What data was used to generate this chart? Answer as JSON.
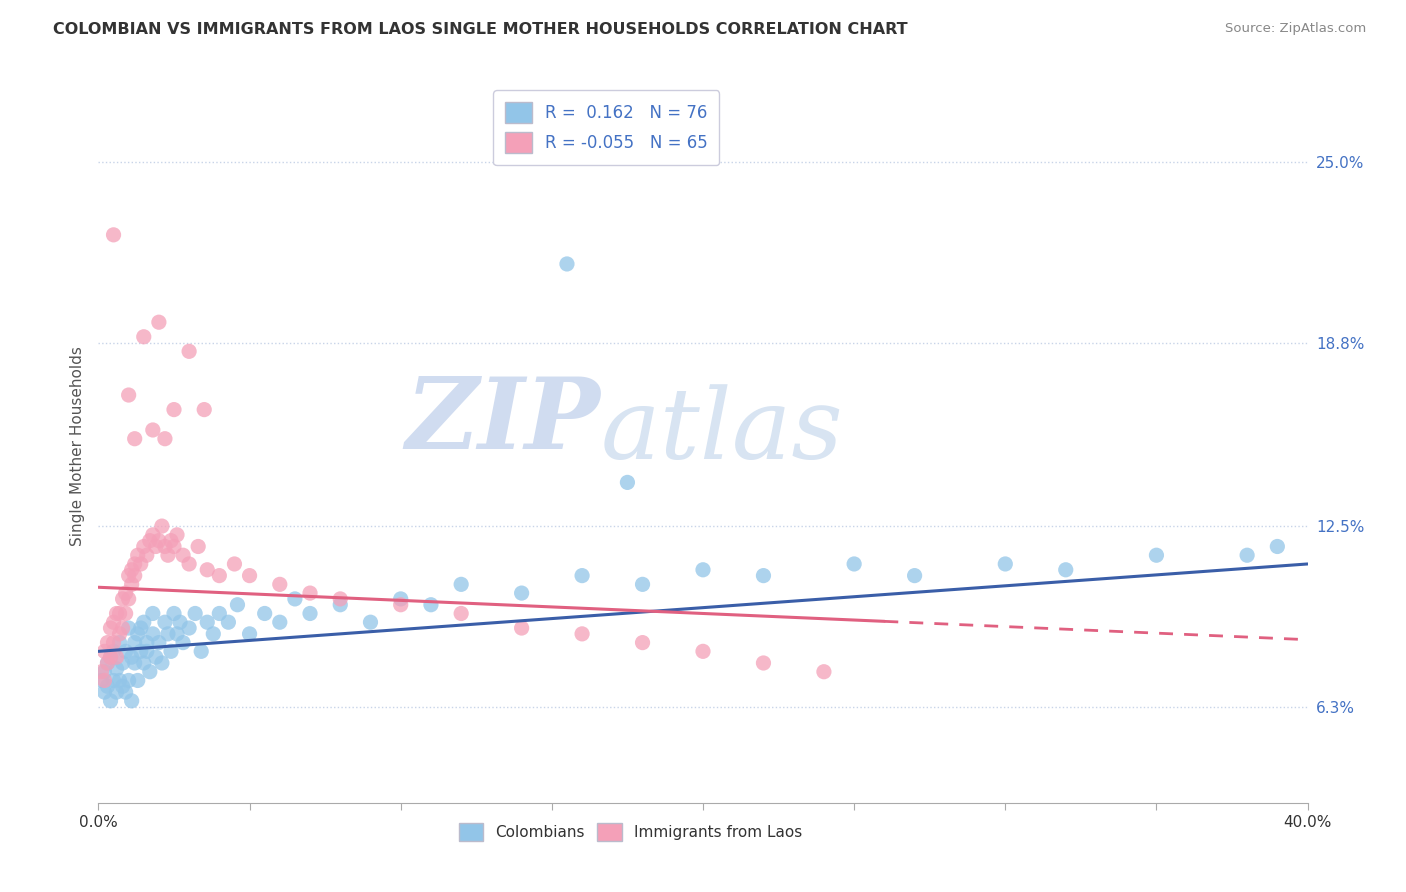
{
  "title": "COLOMBIAN VS IMMIGRANTS FROM LAOS SINGLE MOTHER HOUSEHOLDS CORRELATION CHART",
  "source": "Source: ZipAtlas.com",
  "ylabel": "Single Mother Households",
  "right_yticks": [
    0.063,
    0.125,
    0.188,
    0.25
  ],
  "right_yticklabels": [
    "6.3%",
    "12.5%",
    "18.8%",
    "25.0%"
  ],
  "xlim": [
    0.0,
    0.4
  ],
  "ylim": [
    0.03,
    0.275
  ],
  "legend_R1": "0.162",
  "legend_N1": "76",
  "legend_R2": "-0.055",
  "legend_N2": "65",
  "color_blue": "#92C5E8",
  "color_pink": "#F4A0B8",
  "color_blue_line": "#3A5EA8",
  "color_pink_line": "#E06080",
  "color_text_blue": "#4472C4",
  "color_grid": "#C8D4E8",
  "background_color": "#FFFFFF",
  "watermark_zip": "ZIP",
  "watermark_atlas": "atlas",
  "blue_x": [
    0.001,
    0.002,
    0.002,
    0.003,
    0.003,
    0.004,
    0.004,
    0.005,
    0.005,
    0.006,
    0.006,
    0.007,
    0.007,
    0.008,
    0.008,
    0.009,
    0.009,
    0.01,
    0.01,
    0.011,
    0.011,
    0.012,
    0.012,
    0.013,
    0.013,
    0.014,
    0.014,
    0.015,
    0.015,
    0.016,
    0.016,
    0.017,
    0.018,
    0.018,
    0.019,
    0.02,
    0.021,
    0.022,
    0.023,
    0.024,
    0.025,
    0.026,
    0.027,
    0.028,
    0.03,
    0.032,
    0.034,
    0.036,
    0.038,
    0.04,
    0.043,
    0.046,
    0.05,
    0.055,
    0.06,
    0.065,
    0.07,
    0.08,
    0.09,
    0.1,
    0.11,
    0.12,
    0.14,
    0.16,
    0.18,
    0.2,
    0.22,
    0.25,
    0.27,
    0.3,
    0.32,
    0.35,
    0.155,
    0.175,
    0.38,
    0.39
  ],
  "blue_y": [
    0.072,
    0.068,
    0.075,
    0.07,
    0.078,
    0.065,
    0.08,
    0.072,
    0.082,
    0.068,
    0.076,
    0.072,
    0.085,
    0.07,
    0.078,
    0.082,
    0.068,
    0.09,
    0.072,
    0.08,
    0.065,
    0.085,
    0.078,
    0.088,
    0.072,
    0.082,
    0.09,
    0.078,
    0.092,
    0.082,
    0.085,
    0.075,
    0.088,
    0.095,
    0.08,
    0.085,
    0.078,
    0.092,
    0.088,
    0.082,
    0.095,
    0.088,
    0.092,
    0.085,
    0.09,
    0.095,
    0.082,
    0.092,
    0.088,
    0.095,
    0.092,
    0.098,
    0.088,
    0.095,
    0.092,
    0.1,
    0.095,
    0.098,
    0.092,
    0.1,
    0.098,
    0.105,
    0.102,
    0.108,
    0.105,
    0.11,
    0.108,
    0.112,
    0.108,
    0.112,
    0.11,
    0.115,
    0.215,
    0.14,
    0.115,
    0.118
  ],
  "pink_x": [
    0.001,
    0.002,
    0.002,
    0.003,
    0.003,
    0.004,
    0.004,
    0.005,
    0.005,
    0.006,
    0.006,
    0.007,
    0.007,
    0.008,
    0.008,
    0.009,
    0.009,
    0.01,
    0.01,
    0.011,
    0.011,
    0.012,
    0.012,
    0.013,
    0.014,
    0.015,
    0.016,
    0.017,
    0.018,
    0.019,
    0.02,
    0.021,
    0.022,
    0.023,
    0.024,
    0.025,
    0.026,
    0.028,
    0.03,
    0.033,
    0.036,
    0.04,
    0.045,
    0.05,
    0.06,
    0.07,
    0.08,
    0.1,
    0.12,
    0.14,
    0.16,
    0.18,
    0.2,
    0.22,
    0.24,
    0.005,
    0.015,
    0.02,
    0.025,
    0.03,
    0.035,
    0.01,
    0.012,
    0.018,
    0.022
  ],
  "pink_y": [
    0.075,
    0.072,
    0.082,
    0.078,
    0.085,
    0.08,
    0.09,
    0.085,
    0.092,
    0.08,
    0.095,
    0.088,
    0.095,
    0.09,
    0.1,
    0.095,
    0.102,
    0.1,
    0.108,
    0.105,
    0.11,
    0.112,
    0.108,
    0.115,
    0.112,
    0.118,
    0.115,
    0.12,
    0.122,
    0.118,
    0.12,
    0.125,
    0.118,
    0.115,
    0.12,
    0.118,
    0.122,
    0.115,
    0.112,
    0.118,
    0.11,
    0.108,
    0.112,
    0.108,
    0.105,
    0.102,
    0.1,
    0.098,
    0.095,
    0.09,
    0.088,
    0.085,
    0.082,
    0.078,
    0.075,
    0.225,
    0.19,
    0.195,
    0.165,
    0.185,
    0.165,
    0.17,
    0.155,
    0.158,
    0.155
  ]
}
